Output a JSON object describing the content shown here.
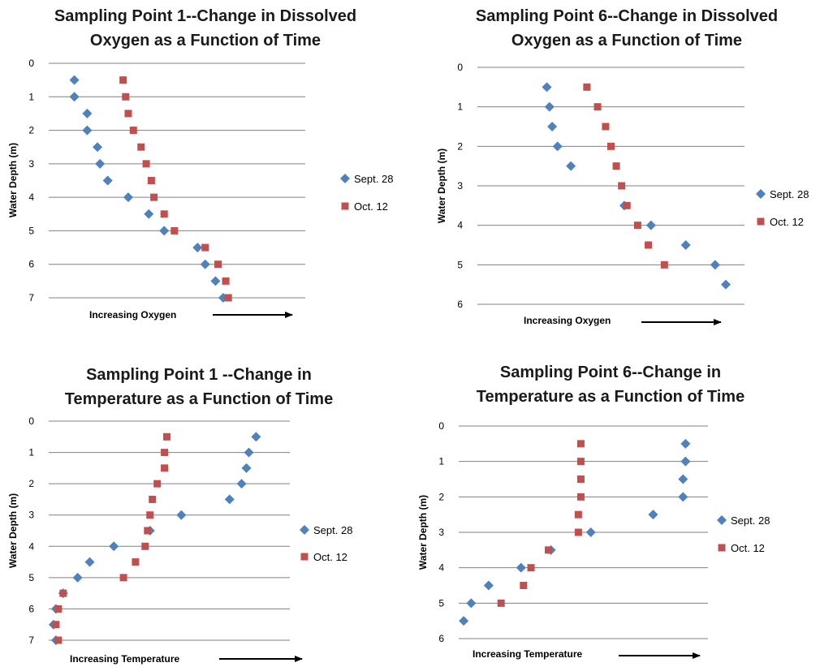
{
  "figure": {
    "colors": {
      "sept": "#4F81BD",
      "oct": "#C0504D",
      "grid": "#808080"
    }
  },
  "chart_data": [
    {
      "type": "scatter",
      "title_lines": [
        "Sampling Point 1--Change in Dissolved",
        "Oxygen as a Function of Time"
      ],
      "xlabel": "Increasing Oxygen",
      "ylabel": "Water Depth (m)",
      "ylim": [
        0,
        7
      ],
      "xlim": [
        0,
        10
      ],
      "y_inverted": true,
      "yticks": [
        0,
        1,
        2,
        3,
        4,
        5,
        6,
        7
      ],
      "legend_position": "right",
      "series": [
        {
          "name": "Sept. 28",
          "marker": "diamond",
          "points": [
            [
              1.0,
              0.5
            ],
            [
              1.0,
              1.0
            ],
            [
              1.5,
              1.5
            ],
            [
              1.5,
              2.0
            ],
            [
              1.9,
              2.5
            ],
            [
              2.0,
              3.0
            ],
            [
              2.3,
              3.5
            ],
            [
              3.1,
              4.0
            ],
            [
              3.9,
              4.5
            ],
            [
              4.5,
              5.0
            ],
            [
              5.8,
              5.5
            ],
            [
              6.1,
              6.0
            ],
            [
              6.5,
              6.5
            ],
            [
              6.8,
              7.0
            ]
          ]
        },
        {
          "name": "Oct. 12",
          "marker": "square",
          "points": [
            [
              2.9,
              0.5
            ],
            [
              3.0,
              1.0
            ],
            [
              3.1,
              1.5
            ],
            [
              3.3,
              2.0
            ],
            [
              3.6,
              2.5
            ],
            [
              3.8,
              3.0
            ],
            [
              4.0,
              3.5
            ],
            [
              4.1,
              4.0
            ],
            [
              4.5,
              4.5
            ],
            [
              4.9,
              5.0
            ],
            [
              6.1,
              5.5
            ],
            [
              6.6,
              6.0
            ],
            [
              6.9,
              6.5
            ],
            [
              7.0,
              7.0
            ]
          ]
        }
      ]
    },
    {
      "type": "scatter",
      "title_lines": [
        "Sampling Point 6--Change in Dissolved",
        "Oxygen as a Function of Time"
      ],
      "xlabel": "Increasing Oxygen",
      "ylabel": "Water Depth (m)",
      "ylim": [
        0,
        6
      ],
      "xlim": [
        0,
        10
      ],
      "y_inverted": true,
      "yticks": [
        0,
        1,
        2,
        3,
        4,
        5,
        6
      ],
      "legend_position": "right",
      "series": [
        {
          "name": "Sept. 28",
          "marker": "diamond",
          "points": [
            [
              2.6,
              0.5
            ],
            [
              2.7,
              1.0
            ],
            [
              2.8,
              1.5
            ],
            [
              3.0,
              2.0
            ],
            [
              3.5,
              2.5
            ],
            [
              5.5,
              3.5
            ],
            [
              6.5,
              4.0
            ],
            [
              7.8,
              4.5
            ],
            [
              8.9,
              5.0
            ],
            [
              9.3,
              5.5
            ]
          ]
        },
        {
          "name": "Oct. 12",
          "marker": "square",
          "points": [
            [
              4.1,
              0.5
            ],
            [
              4.5,
              1.0
            ],
            [
              4.8,
              1.5
            ],
            [
              5.0,
              2.0
            ],
            [
              5.2,
              2.5
            ],
            [
              5.4,
              3.0
            ],
            [
              5.6,
              3.5
            ],
            [
              6.0,
              4.0
            ],
            [
              6.4,
              4.5
            ],
            [
              7.0,
              5.0
            ]
          ]
        }
      ]
    },
    {
      "type": "scatter",
      "title_lines": [
        "Sampling Point 1 --Change in",
        "Temperature as a Function of Time"
      ],
      "xlabel": "Increasing Temperature",
      "ylabel": "Water Depth (m)",
      "ylim": [
        0,
        7
      ],
      "xlim": [
        0,
        10
      ],
      "y_inverted": true,
      "yticks": [
        0,
        1,
        2,
        3,
        4,
        5,
        6,
        7
      ],
      "legend_position": "right",
      "series": [
        {
          "name": "Sept. 28",
          "marker": "diamond",
          "points": [
            [
              8.6,
              0.5
            ],
            [
              8.3,
              1.0
            ],
            [
              8.2,
              1.5
            ],
            [
              8.0,
              2.0
            ],
            [
              7.5,
              2.5
            ],
            [
              5.5,
              3.0
            ],
            [
              4.2,
              3.5
            ],
            [
              2.7,
              4.0
            ],
            [
              1.7,
              4.5
            ],
            [
              1.2,
              5.0
            ],
            [
              0.6,
              5.5
            ],
            [
              0.3,
              6.0
            ],
            [
              0.2,
              6.5
            ],
            [
              0.3,
              7.0
            ]
          ]
        },
        {
          "name": "Oct. 12",
          "marker": "square",
          "points": [
            [
              4.9,
              0.5
            ],
            [
              4.8,
              1.0
            ],
            [
              4.8,
              1.5
            ],
            [
              4.5,
              2.0
            ],
            [
              4.3,
              2.5
            ],
            [
              4.2,
              3.0
            ],
            [
              4.1,
              3.5
            ],
            [
              4.0,
              4.0
            ],
            [
              3.6,
              4.5
            ],
            [
              3.1,
              5.0
            ],
            [
              0.6,
              5.5
            ],
            [
              0.4,
              6.0
            ],
            [
              0.3,
              6.5
            ],
            [
              0.4,
              7.0
            ]
          ]
        }
      ]
    },
    {
      "type": "scatter",
      "title_lines": [
        "Sampling Point 6--Change in",
        "Temperature as a Function of Time"
      ],
      "xlabel": "Increasing Temperature",
      "ylabel": "Water Depth (m)",
      "ylim": [
        0,
        6
      ],
      "xlim": [
        0,
        10
      ],
      "y_inverted": true,
      "yticks": [
        0,
        1,
        2,
        3,
        4,
        5,
        6
      ],
      "legend_position": "right",
      "series": [
        {
          "name": "Sept. 28",
          "marker": "diamond",
          "points": [
            [
              9.1,
              0.5
            ],
            [
              9.1,
              1.0
            ],
            [
              9.0,
              1.5
            ],
            [
              9.0,
              2.0
            ],
            [
              7.8,
              2.5
            ],
            [
              5.3,
              3.0
            ],
            [
              3.7,
              3.5
            ],
            [
              2.5,
              4.0
            ],
            [
              1.2,
              4.5
            ],
            [
              0.5,
              5.0
            ],
            [
              0.2,
              5.5
            ]
          ]
        },
        {
          "name": "Oct. 12",
          "marker": "square",
          "points": [
            [
              4.9,
              0.5
            ],
            [
              4.9,
              1.0
            ],
            [
              4.9,
              1.5
            ],
            [
              4.9,
              2.0
            ],
            [
              4.8,
              2.5
            ],
            [
              4.8,
              3.0
            ],
            [
              3.6,
              3.5
            ],
            [
              2.9,
              4.0
            ],
            [
              2.6,
              4.5
            ],
            [
              1.7,
              5.0
            ]
          ]
        }
      ]
    }
  ]
}
